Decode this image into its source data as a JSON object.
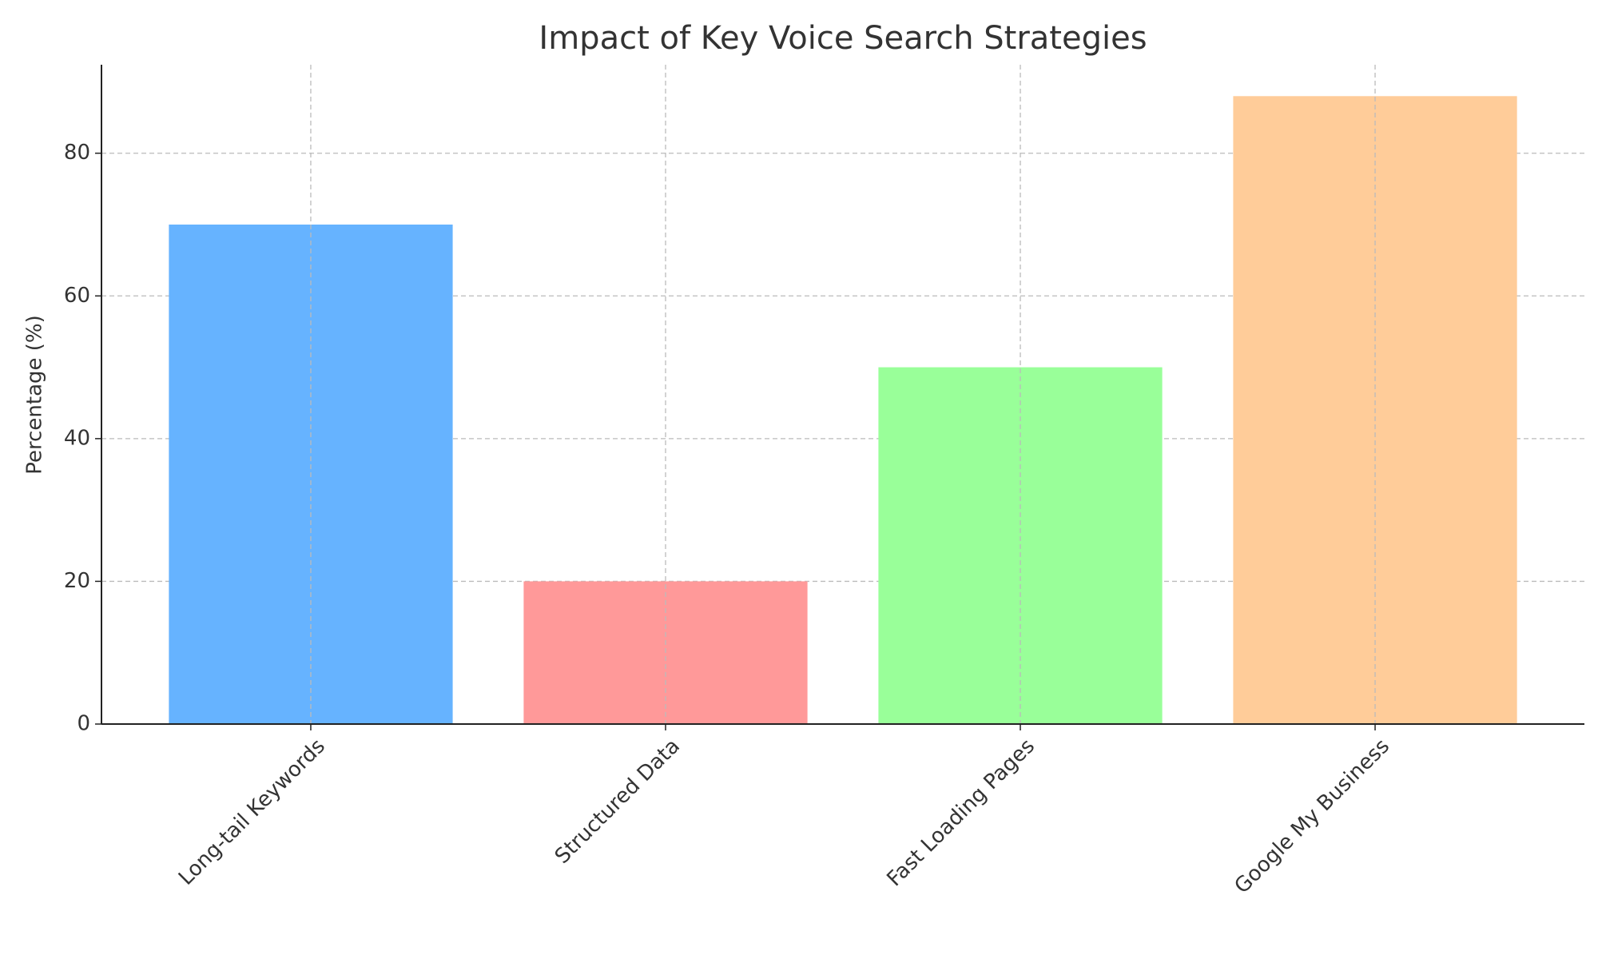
{
  "chart_data": {
    "type": "bar",
    "title": "Impact of Key Voice Search Strategies",
    "y_label": "Percentage (%)",
    "categories": [
      "Long-tail Keywords",
      "Structured Data",
      "Fast Loading Pages",
      "Google My Business"
    ],
    "values": [
      70,
      20,
      50,
      88
    ],
    "colors": [
      "#66b3ff",
      "#ff9999",
      "#99ff99",
      "#ffcc99"
    ],
    "ylim": [
      0,
      92.4
    ],
    "yticks": [
      0,
      20,
      40,
      60,
      80
    ],
    "grid": true
  }
}
